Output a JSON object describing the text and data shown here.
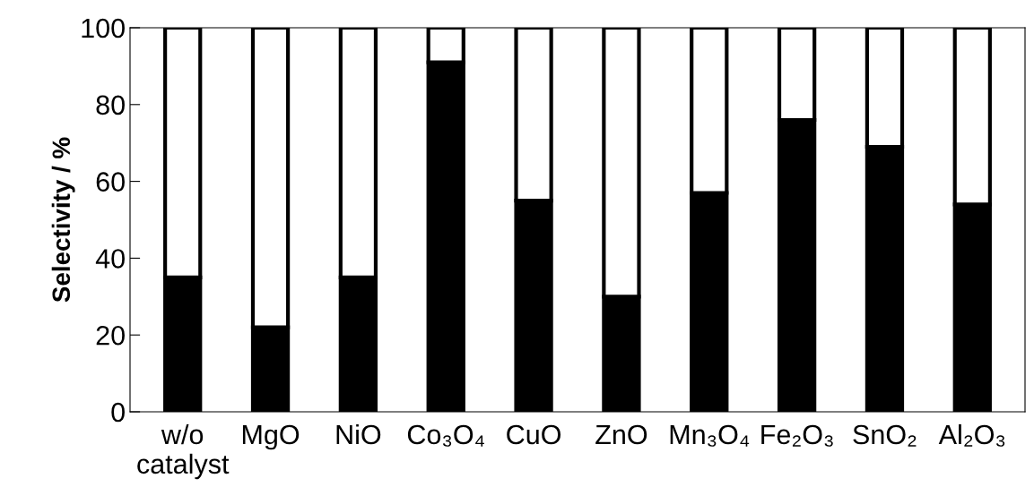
{
  "chart_data": {
    "type": "bar",
    "stacked": true,
    "ylabel": "Selectivity / %",
    "categories": [
      "w/o\ncatalyst",
      "MgO",
      "NiO",
      "Co₃O₄",
      "CuO",
      "ZnO",
      "Mn₃O₄",
      "Fe₂O₃",
      "SnO₂",
      "Al₂O₃"
    ],
    "series": [
      {
        "color": "#000000",
        "values": [
          35,
          22,
          35,
          91,
          55,
          30,
          57,
          76,
          69,
          54
        ]
      },
      {
        "color": "#ffffff",
        "values": [
          65,
          78,
          65,
          9,
          45,
          70,
          43,
          24,
          31,
          46
        ]
      }
    ],
    "ylim": [
      0,
      100
    ],
    "yticks": [
      0,
      20,
      40,
      60,
      80,
      100
    ],
    "grid": false,
    "legend": false
  }
}
